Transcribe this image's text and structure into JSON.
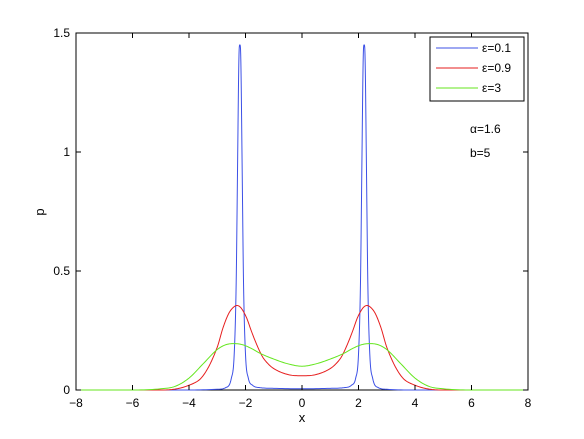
{
  "chart_data": {
    "type": "line",
    "title": "",
    "xlabel": "x",
    "ylabel": "p",
    "xlim": [
      -8,
      8
    ],
    "ylim": [
      0,
      1.5
    ],
    "xticks": [
      -8,
      -6,
      -4,
      -2,
      0,
      2,
      4,
      6,
      8
    ],
    "yticks": [
      0,
      0.5,
      1,
      1.5
    ],
    "xtick_labels": [
      "−8",
      "−6",
      "−4",
      "−2",
      "0",
      "2",
      "4",
      "6",
      "8"
    ],
    "ytick_labels": [
      "0",
      "0.5",
      "1",
      "1.5"
    ],
    "grid": false,
    "legend_position": "top-right",
    "annotations": [
      "α=1.6",
      "b=5"
    ],
    "series": [
      {
        "name": "ε=0.1",
        "color": "#3c50e6",
        "x": [
          -8,
          -4,
          -3,
          -2.7,
          -2.5,
          -2.4,
          -2.33,
          -2.28,
          -2.24,
          -2.22,
          -2.2,
          -2.18,
          -2.16,
          -2.12,
          -2.07,
          -2.0,
          -1.9,
          -1.75,
          -1.5,
          -1,
          0,
          1,
          1.5,
          1.75,
          1.9,
          2.0,
          2.07,
          2.12,
          2.16,
          2.18,
          2.2,
          2.22,
          2.24,
          2.28,
          2.33,
          2.4,
          2.5,
          2.7,
          3,
          4,
          8
        ],
        "y": [
          0,
          0,
          0.003,
          0.01,
          0.05,
          0.15,
          0.45,
          0.95,
          1.35,
          1.44,
          1.45,
          1.44,
          1.35,
          0.95,
          0.45,
          0.15,
          0.05,
          0.02,
          0.01,
          0.007,
          0.005,
          0.007,
          0.01,
          0.02,
          0.05,
          0.15,
          0.45,
          0.95,
          1.35,
          1.44,
          1.45,
          1.44,
          1.35,
          0.95,
          0.45,
          0.15,
          0.05,
          0.01,
          0.003,
          0,
          0
        ]
      },
      {
        "name": "ε=0.9",
        "color": "#e61e1e",
        "x": [
          -8,
          -5,
          -4,
          -3.5,
          -3.0,
          -2.8,
          -2.6,
          -2.45,
          -2.3,
          -2.2,
          -2.1,
          -1.95,
          -1.8,
          -1.6,
          -1.4,
          -1.2,
          -1,
          -0.5,
          0,
          0.5,
          1,
          1.2,
          1.4,
          1.6,
          1.8,
          1.95,
          2.1,
          2.2,
          2.3,
          2.45,
          2.6,
          2.8,
          3.0,
          3.5,
          4,
          5,
          8
        ],
        "y": [
          0,
          0,
          0.02,
          0.06,
          0.18,
          0.26,
          0.32,
          0.345,
          0.355,
          0.35,
          0.335,
          0.3,
          0.25,
          0.19,
          0.14,
          0.11,
          0.09,
          0.065,
          0.06,
          0.065,
          0.09,
          0.11,
          0.14,
          0.19,
          0.25,
          0.3,
          0.335,
          0.35,
          0.355,
          0.345,
          0.32,
          0.26,
          0.18,
          0.06,
          0.02,
          0,
          0
        ]
      },
      {
        "name": "ε=3",
        "color": "#64e61e",
        "x": [
          -8,
          -6,
          -5,
          -4.5,
          -4,
          -3.5,
          -3,
          -2.7,
          -2.4,
          -2.1,
          -1.8,
          -1.5,
          -1,
          -0.5,
          0,
          0.5,
          1,
          1.5,
          1.8,
          2.1,
          2.4,
          2.7,
          3,
          3.5,
          4,
          4.5,
          5,
          6,
          8
        ],
        "y": [
          0,
          0,
          0.005,
          0.015,
          0.05,
          0.11,
          0.17,
          0.19,
          0.195,
          0.19,
          0.175,
          0.155,
          0.13,
          0.11,
          0.1,
          0.11,
          0.13,
          0.155,
          0.175,
          0.19,
          0.195,
          0.19,
          0.17,
          0.11,
          0.05,
          0.015,
          0.005,
          0,
          0
        ]
      }
    ]
  }
}
